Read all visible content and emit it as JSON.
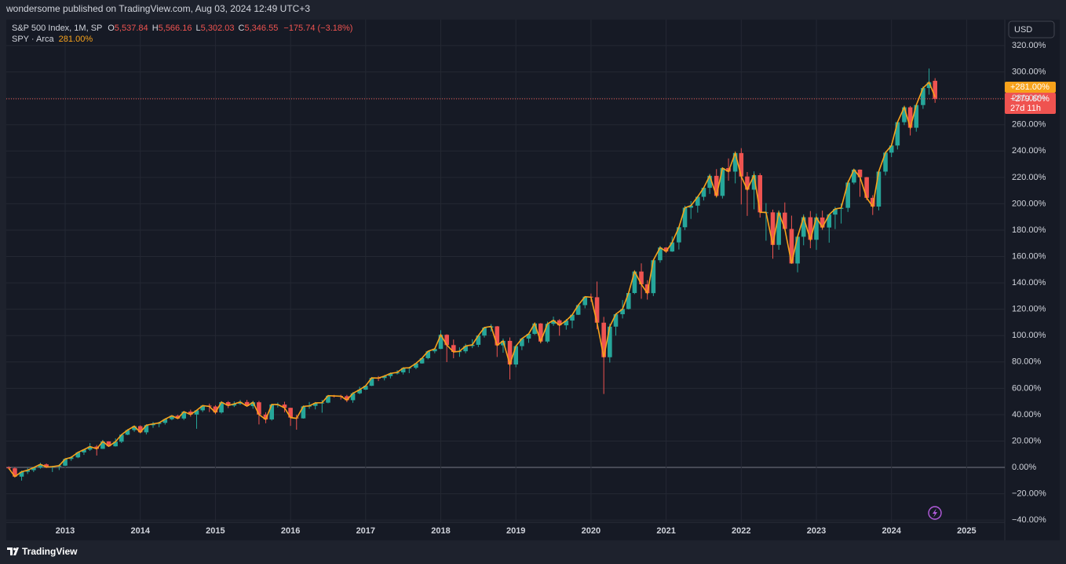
{
  "header": "wondersome published on TradingView.com, Aug 03, 2024 12:49 UTC+3",
  "currency_button": "USD",
  "footer": "TradingView",
  "chart_data": {
    "type": "candlestick",
    "title": "S&P 500 Index, 1M, SP",
    "ohlc_legend": {
      "o_letter": "O",
      "o": "5,537.84",
      "h_letter": "H",
      "h": "5,566.16",
      "l_letter": "L",
      "l": "5,302.03",
      "c_letter": "C",
      "c": "5,346.55",
      "change": "−175.74 (−3.18%)"
    },
    "up_color": "#26a69a",
    "down_color": "#ef5350",
    "grid": true,
    "xlim": [
      2012.216,
      2025.508
    ],
    "xticks": [
      2013,
      2014,
      2015,
      2016,
      2017,
      2018,
      2019,
      2020,
      2021,
      2022,
      2023,
      2024,
      2025
    ],
    "ylim": [
      -41.7,
      339.7
    ],
    "yticks": [
      {
        "value": -40,
        "label": "−40.00%"
      },
      {
        "value": -20,
        "label": "−20.00%"
      },
      {
        "value": 0,
        "label": "0.00%"
      },
      {
        "value": 20,
        "label": "20.00%"
      },
      {
        "value": 40,
        "label": "40.00%"
      },
      {
        "value": 60,
        "label": "60.00%"
      },
      {
        "value": 80,
        "label": "80.00%"
      },
      {
        "value": 100,
        "label": "100.00%"
      },
      {
        "value": 120,
        "label": "120.00%"
      },
      {
        "value": 140,
        "label": "140.00%"
      },
      {
        "value": 160,
        "label": "160.00%"
      },
      {
        "value": 180,
        "label": "180.00%"
      },
      {
        "value": 200,
        "label": "200.00%"
      },
      {
        "value": 220,
        "label": "220.00%"
      },
      {
        "value": 240,
        "label": "240.00%"
      },
      {
        "value": 260,
        "label": "260.00%"
      },
      {
        "value": 280,
        "label": "280.00%"
      },
      {
        "value": 300,
        "label": "300.00%"
      },
      {
        "value": 320,
        "label": "320.00%"
      }
    ],
    "x": [
      2012.25,
      2012.33,
      2012.42,
      2012.5,
      2012.58,
      2012.67,
      2012.75,
      2012.83,
      2012.92,
      2013,
      2013.08,
      2013.17,
      2013.25,
      2013.33,
      2013.42,
      2013.5,
      2013.58,
      2013.67,
      2013.75,
      2013.83,
      2013.92,
      2014,
      2014.08,
      2014.17,
      2014.25,
      2014.33,
      2014.42,
      2014.5,
      2014.58,
      2014.67,
      2014.75,
      2014.83,
      2014.92,
      2015,
      2015.08,
      2015.17,
      2015.25,
      2015.33,
      2015.42,
      2015.5,
      2015.58,
      2015.67,
      2015.75,
      2015.83,
      2015.92,
      2016,
      2016.08,
      2016.17,
      2016.25,
      2016.33,
      2016.42,
      2016.5,
      2016.58,
      2016.67,
      2016.75,
      2016.83,
      2016.92,
      2017,
      2017.08,
      2017.17,
      2017.25,
      2017.33,
      2017.42,
      2017.5,
      2017.58,
      2017.67,
      2017.75,
      2017.83,
      2017.92,
      2018,
      2018.08,
      2018.17,
      2018.25,
      2018.33,
      2018.42,
      2018.5,
      2018.58,
      2018.67,
      2018.75,
      2018.83,
      2018.92,
      2019,
      2019.08,
      2019.17,
      2019.25,
      2019.33,
      2019.42,
      2019.5,
      2019.58,
      2019.67,
      2019.75,
      2019.83,
      2019.92,
      2020,
      2020.08,
      2020.17,
      2020.25,
      2020.33,
      2020.42,
      2020.5,
      2020.58,
      2020.67,
      2020.75,
      2020.83,
      2020.92,
      2021,
      2021.08,
      2021.17,
      2021.25,
      2021.33,
      2021.42,
      2021.5,
      2021.58,
      2021.67,
      2021.75,
      2021.83,
      2021.92,
      2022,
      2022.08,
      2022.17,
      2022.25,
      2022.33,
      2022.42,
      2022.5,
      2022.58,
      2022.67,
      2022.75,
      2022.83,
      2022.92,
      2023,
      2023.08,
      2023.17,
      2023.25,
      2023.33,
      2023.42,
      2023.5,
      2023.58,
      2023.67,
      2023.75,
      2023.83,
      2023.92,
      2024,
      2024.08,
      2024.17,
      2024.25,
      2024.33,
      2024.42,
      2024.5,
      2024.58
    ],
    "open": [
      0.0,
      -0.7,
      -7.0,
      -3.3,
      -2.1,
      -0.1,
      2.3,
      0.3,
      0.6,
      1.3,
      6.4,
      7.6,
      11.4,
      13.5,
      15.8,
      14.1,
      19.7,
      16.0,
      19.5,
      24.8,
      28.3,
      31.3,
      26.6,
      32.0,
      33.0,
      33.8,
      36.6,
      39.2,
      37.1,
      42.3,
      40.1,
      43.3,
      46.9,
      46.2,
      41.7,
      49.5,
      46.9,
      48.2,
      49.6,
      46.5,
      49.4,
      40.1,
      36.4,
      47.7,
      47.7,
      45.2,
      37.8,
      37.2,
      46.3,
      46.7,
      48.9,
      49.1,
      54.4,
      54.2,
      54.0,
      51.0,
      56.2,
      59.0,
      61.9,
      67.9,
      67.8,
      69.3,
      71.3,
      72.1,
      75.4,
      75.6,
      78.9,
      82.9,
      88.1,
      89.9,
      100.6,
      92.8,
      87.6,
      88.1,
      92.1,
      93.0,
      100.0,
      106.1,
      107.0,
      92.6,
      96.0,
      78.1,
      92.0,
      97.7,
      101.3,
      109.2,
      95.5,
      108.9,
      111.6,
      107.8,
      111.4,
      115.8,
      123.1,
      129.5,
      129.1,
      109.8,
      83.6,
      106.8,
      116.2,
      120.2,
      132.3,
      148.6,
      138.9,
      132.2,
      157.2,
      166.8,
      163.8,
      170.7,
      182.2,
      197.0,
      198.6,
      205.3,
      212.1,
      221.2,
      206.0,
      227.1,
      224.4,
      238.5,
      220.7,
      210.7,
      221.7,
      193.3,
      193.5,
      168.8,
      193.3,
      180.9,
      154.7,
      175.0,
      189.8,
      172.7,
      189.6,
      182.0,
      191.8,
      196.1,
      196.9,
      216.1,
      225.9,
      220.2,
      204.5,
      197.9,
      224.4,
      238.8,
      244.2,
      261.9,
      273.2,
      257.7,
      274.9,
      287.8,
      293.3
    ],
    "high": [
      0.8,
      0.2,
      -2.5,
      -0.5,
      0.3,
      3.5,
      3.0,
      1.2,
      2.5,
      7.0,
      8.5,
      12.0,
      14.0,
      18.4,
      17.0,
      20.9,
      19.8,
      22.0,
      25.3,
      29.0,
      31.8,
      31.9,
      32.7,
      34.5,
      34.6,
      37.2,
      39.6,
      40.0,
      42.7,
      43.8,
      43.8,
      47.4,
      48.4,
      47.2,
      50.3,
      50.3,
      50.1,
      51.2,
      51.2,
      50.5,
      50.4,
      41.8,
      48.3,
      49.2,
      49.8,
      45.3,
      40.0,
      47.0,
      49.6,
      49.6,
      51.2,
      54.9,
      55.0,
      55.1,
      55.0,
      57.1,
      61.2,
      62.3,
      68.6,
      69.3,
      70.1,
      72.0,
      73.8,
      76.0,
      76.3,
      79.0,
      83.2,
      88.5,
      90.7,
      104.1,
      101.0,
      97.0,
      91.1,
      93.8,
      97.2,
      100.3,
      106.6,
      108.7,
      107.3,
      97.8,
      98.6,
      92.8,
      98.2,
      101.5,
      109.7,
      109.5,
      110.6,
      114.4,
      112.5,
      112.6,
      116.3,
      123.7,
      129.9,
      131.9,
      141.0,
      114.2,
      109.0,
      117.0,
      127.0,
      132.9,
      148.8,
      154.8,
      142.0,
      157.6,
      168.0,
      167.1,
      175.3,
      183.0,
      198.6,
      202.0,
      206.0,
      212.5,
      222.7,
      226.3,
      227.7,
      234.4,
      239.0,
      242.2,
      224.1,
      224.6,
      223.2,
      200.5,
      195.6,
      195.0,
      201.0,
      191.0,
      176.0,
      192.0,
      194.5,
      192.6,
      194.8,
      192.4,
      197.7,
      200.3,
      217.6,
      226.6,
      226.1,
      220.4,
      206.5,
      224.6,
      239.8,
      245.7,
      262.4,
      274.4,
      274.2,
      275.3,
      289.0,
      302.6,
      295.3
    ],
    "low": [
      -1.5,
      -7.5,
      -10.0,
      -5.0,
      -3.5,
      -1.0,
      -0.5,
      -3.5,
      -2.0,
      1.0,
      5.0,
      7.0,
      9.5,
      12.5,
      9.0,
      14.0,
      15.5,
      15.8,
      18.5,
      24.5,
      27.0,
      26.0,
      25.0,
      30.0,
      30.5,
      32.5,
      35.8,
      36.8,
      36.0,
      38.5,
      29.3,
      42.0,
      42.0,
      40.3,
      40.8,
      45.0,
      45.8,
      47.5,
      46.0,
      44.5,
      32.6,
      33.5,
      35.5,
      45.5,
      41.8,
      31.5,
      28.6,
      37.0,
      44.5,
      44.0,
      41.5,
      48.6,
      53.0,
      51.5,
      49.5,
      49.0,
      55.5,
      58.7,
      61.7,
      65.5,
      66.0,
      67.5,
      70.5,
      70.5,
      71.5,
      74.5,
      78.7,
      82.0,
      86.6,
      89.7,
      79.9,
      82.8,
      83.9,
      86.6,
      90.5,
      91.3,
      98.5,
      103.0,
      83.8,
      87.0,
      66.7,
      76.0,
      89.0,
      94.5,
      100.5,
      94.1,
      94.4,
      107.4,
      99.9,
      104.5,
      105.5,
      115.6,
      120.7,
      125.7,
      104.8,
      55.7,
      79.5,
      100.0,
      113.0,
      119.8,
      131.5,
      127.9,
      127.3,
      130.0,
      155.3,
      162.7,
      163.5,
      165.3,
      180.1,
      188.5,
      193.3,
      202.5,
      207.5,
      205.5,
      204.0,
      217.5,
      215.5,
      199.5,
      190.8,
      195.8,
      189.5,
      172.0,
      158.3,
      165.1,
      180.7,
      154.5,
      148.0,
      168.5,
      166.3,
      165.0,
      180.2,
      170.5,
      180.8,
      185.0,
      193.8,
      214.8,
      205.3,
      202.7,
      191.5,
      195.0,
      221.5,
      235.4,
      241.2,
      259.7,
      251.8,
      254.7,
      272.0,
      282.8,
      276.6
    ],
    "close": [
      -0.7,
      -7.0,
      -3.3,
      -2.1,
      -0.1,
      2.3,
      0.3,
      0.6,
      1.3,
      6.4,
      7.6,
      11.4,
      13.5,
      15.8,
      14.1,
      19.7,
      16.0,
      19.5,
      24.8,
      28.3,
      31.3,
      26.6,
      32.0,
      33.0,
      33.8,
      36.6,
      39.2,
      37.1,
      42.3,
      40.1,
      43.3,
      46.9,
      46.2,
      41.7,
      49.5,
      46.9,
      48.2,
      49.6,
      46.5,
      49.4,
      40.1,
      36.4,
      47.7,
      47.7,
      45.2,
      37.8,
      37.2,
      46.3,
      46.7,
      48.9,
      49.1,
      54.4,
      54.2,
      54.0,
      51.0,
      56.2,
      59.0,
      61.9,
      67.9,
      67.8,
      69.3,
      71.3,
      72.1,
      75.4,
      75.6,
      78.9,
      82.9,
      88.1,
      89.9,
      100.6,
      92.8,
      87.6,
      88.1,
      92.1,
      93.0,
      100.0,
      106.1,
      107.0,
      92.6,
      96.0,
      78.1,
      92.0,
      97.7,
      101.3,
      109.2,
      95.5,
      108.9,
      111.6,
      107.8,
      111.4,
      115.8,
      123.1,
      129.5,
      129.1,
      109.8,
      83.6,
      106.8,
      116.2,
      120.2,
      132.3,
      148.6,
      138.9,
      132.2,
      157.2,
      166.8,
      163.8,
      170.7,
      182.2,
      197.0,
      198.6,
      205.3,
      212.1,
      221.2,
      206.0,
      227.1,
      224.4,
      238.5,
      220.7,
      210.7,
      221.7,
      193.5,
      193.5,
      168.8,
      193.3,
      180.9,
      154.7,
      175.0,
      189.8,
      172.7,
      189.6,
      182.0,
      191.8,
      196.1,
      196.9,
      216.1,
      225.9,
      220.2,
      204.5,
      197.9,
      224.4,
      238.8,
      244.2,
      261.9,
      273.2,
      257.7,
      274.9,
      287.8,
      292.2,
      279.6
    ],
    "series": [
      {
        "name": "SPY · Arca",
        "color": "#f7a21b",
        "legend_value": "281.00%",
        "values": [
          -0.7,
          -7.0,
          -3.3,
          -2.1,
          -0.1,
          2.3,
          0.3,
          0.6,
          1.3,
          6.4,
          7.6,
          11.4,
          13.5,
          15.8,
          14.1,
          19.7,
          16.0,
          19.5,
          24.8,
          28.3,
          31.3,
          26.6,
          32.0,
          33.0,
          33.8,
          36.6,
          39.2,
          37.1,
          42.3,
          40.1,
          43.3,
          46.9,
          46.2,
          41.7,
          49.5,
          46.9,
          48.2,
          49.6,
          46.5,
          49.4,
          40.1,
          36.4,
          47.7,
          47.7,
          45.2,
          37.8,
          37.2,
          46.3,
          46.7,
          48.9,
          49.1,
          54.4,
          54.2,
          54.0,
          51.0,
          56.2,
          59.0,
          61.9,
          67.9,
          67.8,
          69.3,
          71.3,
          72.1,
          75.4,
          75.6,
          78.9,
          82.9,
          88.1,
          89.9,
          100.6,
          92.8,
          87.6,
          88.1,
          92.1,
          93.0,
          100.0,
          106.1,
          107.0,
          92.6,
          96.0,
          78.1,
          92.0,
          97.7,
          101.3,
          109.2,
          95.5,
          108.9,
          111.6,
          107.8,
          111.4,
          115.8,
          123.1,
          129.5,
          129.1,
          109.8,
          83.6,
          106.8,
          116.2,
          120.2,
          132.3,
          148.6,
          138.9,
          132.2,
          157.2,
          166.8,
          163.8,
          170.7,
          182.2,
          197.0,
          198.6,
          205.3,
          212.1,
          221.2,
          206.0,
          227.1,
          224.4,
          238.5,
          220.7,
          210.7,
          221.7,
          193.5,
          193.5,
          168.8,
          193.3,
          180.9,
          154.7,
          175.0,
          189.8,
          172.7,
          189.6,
          182.0,
          191.8,
          196.1,
          196.9,
          216.1,
          225.9,
          220.2,
          204.5,
          197.9,
          224.4,
          238.8,
          244.2,
          261.9,
          273.2,
          257.7,
          274.9,
          287.8,
          292.2,
          281.0
        ]
      }
    ],
    "price_tags": {
      "spy": "+281.00%",
      "index": "+279.60%",
      "countdown": "27d 11h"
    }
  }
}
